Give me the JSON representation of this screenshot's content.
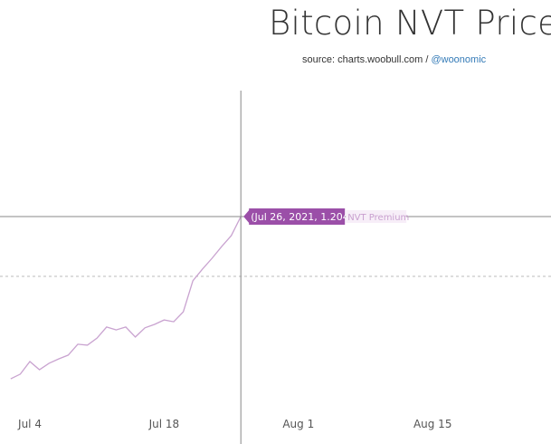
{
  "title": "Bitcoin NVT Price",
  "source": {
    "prefix": "source: charts.woobull.com / ",
    "handle": "@woonomic"
  },
  "tooltip": {
    "text": "(Jul 26, 2021, 1.20444)",
    "series_label": "NVT Premium"
  },
  "colors": {
    "line": "#c9a3d0",
    "tooltip": "#9b4fa8",
    "crosshair": "#888888",
    "link": "#337ab7"
  },
  "chart_data": {
    "type": "line",
    "title": "Bitcoin NVT Price",
    "x_ticks": [
      "Jul 4",
      "Jul 18",
      "Aug 1",
      "Aug 15"
    ],
    "x_tick_dates": [
      "2021-07-04",
      "2021-07-18",
      "2021-08-01",
      "2021-08-15"
    ],
    "grid": "single dashed horizontal line",
    "series": [
      {
        "name": "NVT Premium",
        "x": [
          "2021-07-02",
          "2021-07-03",
          "2021-07-04",
          "2021-07-05",
          "2021-07-06",
          "2021-07-07",
          "2021-07-08",
          "2021-07-09",
          "2021-07-10",
          "2021-07-11",
          "2021-07-12",
          "2021-07-13",
          "2021-07-14",
          "2021-07-15",
          "2021-07-16",
          "2021-07-17",
          "2021-07-18",
          "2021-07-19",
          "2021-07-20",
          "2021-07-21",
          "2021-07-22",
          "2021-07-23",
          "2021-07-24",
          "2021-07-25",
          "2021-07-26"
        ],
        "y": [
          0.65,
          0.666,
          0.709,
          0.681,
          0.703,
          0.718,
          0.731,
          0.768,
          0.765,
          0.789,
          0.827,
          0.817,
          0.827,
          0.793,
          0.824,
          0.836,
          0.851,
          0.845,
          0.879,
          0.985,
          1.025,
          1.062,
          1.102,
          1.139,
          1.20444
        ]
      }
    ],
    "dashed_gridline_value": 1.0,
    "crosshair": {
      "x": "2021-07-26",
      "y": 1.20444
    }
  }
}
